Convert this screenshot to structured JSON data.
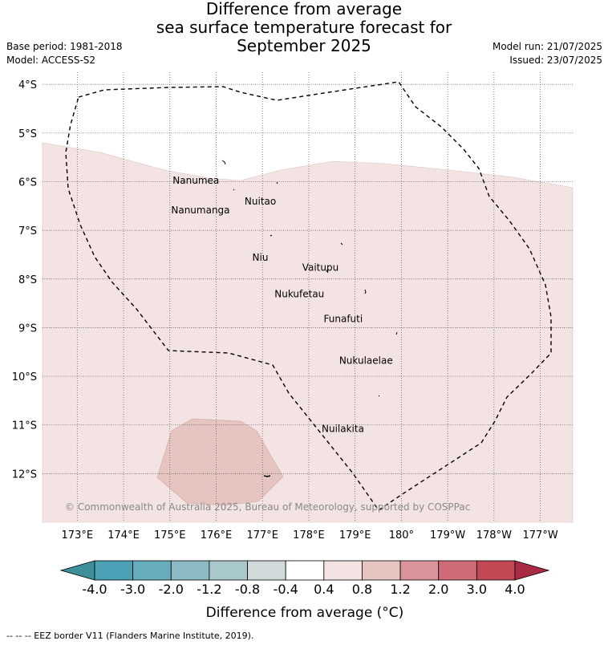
{
  "header": {
    "title_lines": [
      "Difference from average",
      "sea surface temperature forecast for",
      "September 2025"
    ],
    "base_period": "Base period: 1981-2018",
    "model": "Model: ACCESS-S2",
    "model_run": "Model run: 21/07/2025",
    "issued": "Issued: 23/07/2025"
  },
  "map": {
    "lon_labels": [
      "173°E",
      "174°E",
      "175°E",
      "176°E",
      "177°E",
      "178°E",
      "179°E",
      "180°",
      "179°W",
      "178°W",
      "177°W"
    ],
    "lat_labels": [
      "4°S",
      "5°S",
      "6°S",
      "7°S",
      "8°S",
      "9°S",
      "10°S",
      "11°S",
      "12°S"
    ],
    "lon_range": [
      172.25,
      183.7
    ],
    "lat_range": [
      -3.75,
      -13.0
    ],
    "place_labels": [
      {
        "name": "Nanumea",
        "lon": 176.1,
        "lat": -5.68
      },
      {
        "name": "Nanumanga",
        "lon": 176.33,
        "lat": -6.29
      },
      {
        "name": "Nuitao",
        "lon": 177.33,
        "lat": -6.11
      },
      {
        "name": "Niu",
        "lon": 177.16,
        "lat": -7.26
      },
      {
        "name": "Vaitupu",
        "lon": 178.68,
        "lat": -7.47
      },
      {
        "name": "Nukufetau",
        "lon": 178.37,
        "lat": -8.01
      },
      {
        "name": "Funafuti",
        "lon": 179.2,
        "lat": -8.52
      },
      {
        "name": "Nukulaelae",
        "lon": 179.85,
        "lat": -9.38
      },
      {
        "name": "Nuilakita",
        "lon": 179.23,
        "lat": -10.78
      }
    ],
    "copyright": "© Commonwealth of Australia 2025, Bureau of Meteorology, supported by COSPPac",
    "anomaly_fills": [
      {
        "class": "0.4 to 0.8",
        "color": "#f3e4e3"
      },
      {
        "class": "0.8 to 1.2",
        "color": "#e6c5c1"
      }
    ],
    "eez_style": "dashed black"
  },
  "legend": {
    "tick_labels": [
      "-4.0",
      "-3.0",
      "-2.0",
      "-1.2",
      "-0.8",
      "-0.4",
      "0.4",
      "0.8",
      "1.2",
      "2.0",
      "3.0",
      "4.0"
    ],
    "colors": [
      "#3f8f9b",
      "#4aa0b4",
      "#68adbe",
      "#8bbac5",
      "#a9c8cb",
      "#d1dadb",
      "#ffffff",
      "#f3e4e3",
      "#e6c5c1",
      "#d9949b",
      "#cd6b76",
      "#c24855",
      "#a92b43"
    ],
    "label": "Difference from average (°C)"
  },
  "footer": {
    "eez_note": "--  --  -- EEZ border V11 (Flanders Marine Institute, 2019)."
  }
}
